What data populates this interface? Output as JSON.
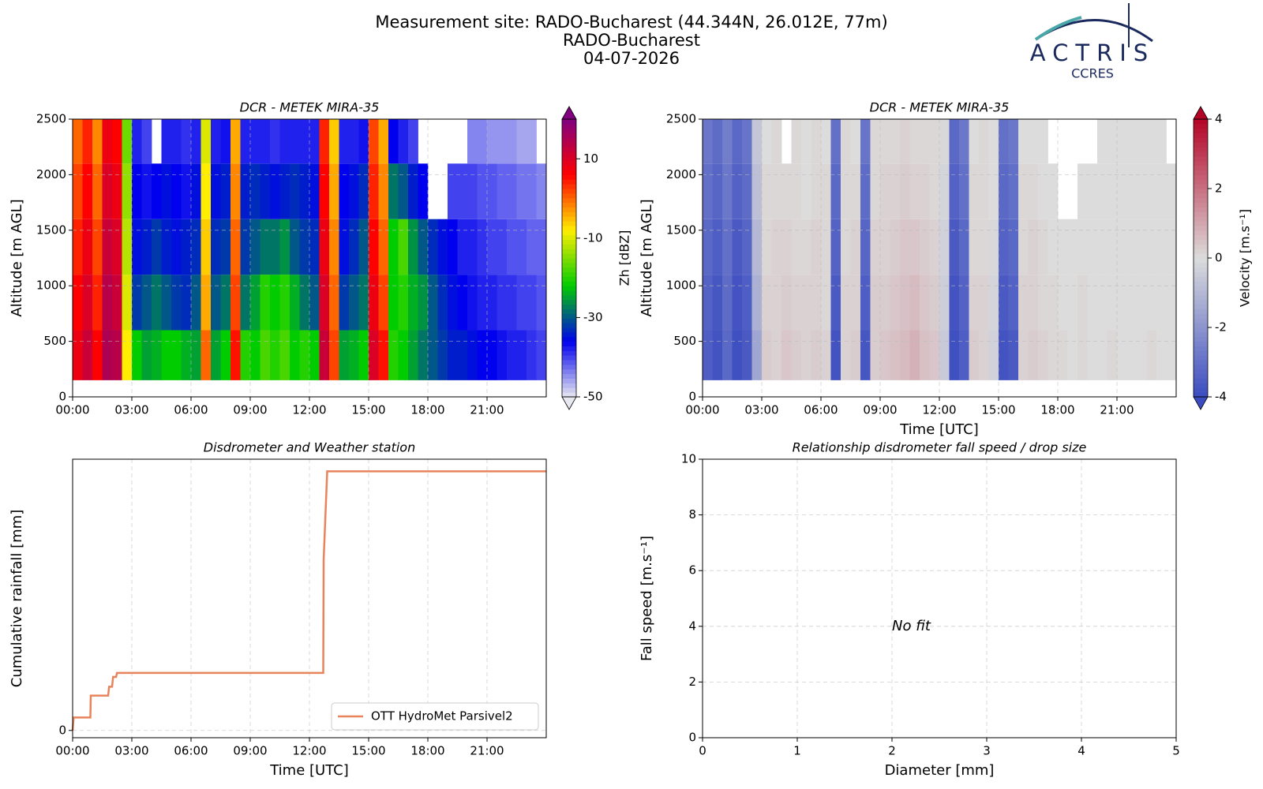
{
  "header": {
    "title": "Measurement site: RADO-Bucharest (44.344N, 26.012E, 77m)",
    "site": "RADO-Bucharest",
    "date": "04-07-2026",
    "logo": "ACTRIS",
    "logo_sub": "CCRES"
  },
  "chart_data": [
    {
      "type": "heatmap",
      "title": "DCR - METEK MIRA-35",
      "ylabel": "Altitude [m AGL]",
      "xlim": [
        0,
        24
      ],
      "ylim": [
        0,
        2500
      ],
      "yticks": [
        0,
        500,
        1000,
        1500,
        2000,
        2500
      ],
      "xticks": [
        {
          "value": 0,
          "label": "00:00"
        },
        {
          "value": 3,
          "label": "03:00"
        },
        {
          "value": 6,
          "label": "06:00"
        },
        {
          "value": 9,
          "label": "09:00"
        },
        {
          "value": 12,
          "label": "12:00"
        },
        {
          "value": 15,
          "label": "15:00"
        },
        {
          "value": 18,
          "label": "18:00"
        },
        {
          "value": 21,
          "label": "21:00"
        }
      ],
      "grid": true,
      "colorbar_label": "Zh [dBZ]",
      "clim": [
        -50,
        20
      ],
      "cticks": [
        -50,
        -30,
        -10,
        10
      ],
      "colors": [
        "#e8e8f0",
        "#0000ee",
        "#00cc00",
        "#ffee00",
        "#ff0000",
        "#800080"
      ],
      "x_edges": [
        0,
        0.5,
        1,
        1.5,
        2,
        2.5,
        3,
        3.5,
        4,
        4.5,
        5,
        5.5,
        6,
        6.5,
        7,
        7.5,
        8,
        8.5,
        9,
        9.5,
        10,
        10.5,
        11,
        11.5,
        12,
        12.5,
        13,
        13.5,
        14,
        14.5,
        15,
        15.5,
        16,
        16.5,
        17,
        17.5,
        18,
        18.5,
        19,
        19.5,
        20,
        20.5,
        21,
        21.5,
        22,
        22.5,
        23,
        23.5,
        24
      ],
      "y_edges": [
        150,
        600,
        1100,
        1600,
        2100,
        2500
      ],
      "z": [
        [
          8,
          12,
          6,
          15,
          14,
          -8,
          -22,
          -25,
          -24,
          -22,
          -22,
          -24,
          -25,
          0,
          -25,
          -22,
          5,
          -20,
          -22,
          -18,
          -20,
          -18,
          -22,
          -20,
          -22,
          12,
          2,
          -25,
          -24,
          -22,
          10,
          5,
          -20,
          -22,
          -25,
          -28,
          -30,
          -32,
          -34,
          -34,
          -35,
          -36,
          -36,
          -37,
          -38,
          -38,
          -39,
          -40
        ],
        [
          6,
          10,
          4,
          14,
          12,
          -10,
          -32,
          -30,
          -28,
          -30,
          -32,
          -33,
          -30,
          -4,
          -30,
          -28,
          2,
          -28,
          -25,
          -20,
          -22,
          -20,
          -24,
          -28,
          -30,
          10,
          0,
          -32,
          -30,
          -28,
          8,
          2,
          -22,
          -20,
          -24,
          -26,
          -30,
          -33,
          -35,
          -36,
          -37,
          -38,
          -38,
          -39,
          -39,
          -40,
          -40,
          -41
        ],
        [
          4,
          8,
          2,
          12,
          10,
          -12,
          -35,
          -34,
          -32,
          -34,
          -35,
          -34,
          -33,
          -6,
          -33,
          -32,
          0,
          -32,
          -30,
          -28,
          -28,
          -26,
          -30,
          -32,
          -33,
          8,
          -2,
          -35,
          -33,
          -30,
          6,
          0,
          -22,
          -18,
          -26,
          -30,
          -33,
          -35,
          -36,
          -38,
          -38,
          -39,
          -40,
          -40,
          -41,
          -41,
          -42,
          -42
        ],
        [
          2,
          6,
          0,
          10,
          8,
          -14,
          -36,
          -37,
          -36,
          -35,
          -36,
          -37,
          -35,
          -8,
          -35,
          -34,
          -2,
          -34,
          -33,
          -34,
          -35,
          -34,
          -33,
          -34,
          -35,
          6,
          -4,
          -36,
          -35,
          -33,
          4,
          -2,
          -28,
          -30,
          -34,
          -36,
          null,
          null,
          -40,
          -40,
          -40,
          -41,
          -41,
          -42,
          -42,
          -43,
          -43,
          -44
        ],
        [
          0,
          4,
          -2,
          8,
          6,
          -16,
          -38,
          -40,
          null,
          -38,
          -38,
          -39,
          -38,
          -10,
          -38,
          -37,
          -4,
          -38,
          -38,
          -38,
          -39,
          -38,
          -38,
          -38,
          -38,
          4,
          -6,
          -38,
          -38,
          -37,
          2,
          -4,
          -36,
          -38,
          -40,
          null,
          null,
          null,
          null,
          null,
          -44,
          -44,
          -45,
          -45,
          -45,
          -46,
          -46,
          null
        ]
      ]
    },
    {
      "type": "heatmap",
      "title": "DCR - METEK MIRA-35",
      "ylabel": "Altitude [m AGL]",
      "xlabel": "Time [UTC]",
      "xlim": [
        0,
        24
      ],
      "ylim": [
        0,
        2500
      ],
      "yticks": [
        0,
        500,
        1000,
        1500,
        2000,
        2500
      ],
      "xticks": [
        {
          "value": 0,
          "label": "00:00"
        },
        {
          "value": 3,
          "label": "03:00"
        },
        {
          "value": 6,
          "label": "06:00"
        },
        {
          "value": 9,
          "label": "09:00"
        },
        {
          "value": 12,
          "label": "12:00"
        },
        {
          "value": 15,
          "label": "15:00"
        },
        {
          "value": 18,
          "label": "18:00"
        },
        {
          "value": 21,
          "label": "21:00"
        }
      ],
      "grid": true,
      "colorbar_label": "Velocity [m.s⁻¹]",
      "clim": [
        -4,
        4
      ],
      "cticks": [
        -4,
        -2,
        0,
        2,
        4
      ],
      "colors": [
        "#3b4cc0",
        "#dcdcdc",
        "#b40426"
      ],
      "x_edges": [
        0,
        0.5,
        1,
        1.5,
        2,
        2.5,
        3,
        3.5,
        4,
        4.5,
        5,
        5.5,
        6,
        6.5,
        7,
        7.5,
        8,
        8.5,
        9,
        9.5,
        10,
        10.5,
        11,
        11.5,
        12,
        12.5,
        13,
        13.5,
        14,
        14.5,
        15,
        15.5,
        16,
        16.5,
        17,
        17.5,
        18,
        18.5,
        19,
        19.5,
        20,
        20.5,
        21,
        21.5,
        22,
        22.5,
        23,
        23.5,
        24
      ],
      "y_edges": [
        150,
        600,
        1100,
        1600,
        2100,
        2500
      ],
      "z": [
        [
          -3.5,
          -3.8,
          -3.2,
          -3.9,
          -3.6,
          -1.5,
          0.3,
          0.2,
          0.4,
          0.3,
          0.2,
          0.3,
          0.2,
          -3.8,
          0.2,
          0.3,
          -3.7,
          0.3,
          0.4,
          0.5,
          0.6,
          0.8,
          0.5,
          0.4,
          -0.5,
          -3.9,
          -3.5,
          0.3,
          0.2,
          -0.3,
          -3.8,
          -3.6,
          0.2,
          0.3,
          0.2,
          0.1,
          0.1,
          0,
          0.1,
          0,
          0,
          0.1,
          0,
          0,
          0,
          0.1,
          0,
          0
        ],
        [
          -3.4,
          -3.7,
          -3.1,
          -3.8,
          -3.5,
          -1.2,
          0.2,
          0.2,
          0.3,
          0.2,
          0.2,
          0.2,
          0.1,
          -3.6,
          0.2,
          0.2,
          -3.5,
          0.3,
          0.3,
          0.4,
          0.5,
          0.6,
          0.4,
          0.3,
          -0.4,
          -3.8,
          -3.4,
          0.2,
          0.2,
          -0.2,
          -3.6,
          -3.4,
          0.2,
          0.2,
          0.1,
          0.1,
          0,
          0,
          0.1,
          0,
          0,
          0,
          0,
          0,
          0,
          0,
          0,
          0
        ],
        [
          -3.2,
          -3.5,
          -3,
          -3.6,
          -3.3,
          -1,
          0.1,
          0.2,
          0.2,
          0.1,
          0.1,
          0.2,
          0.1,
          -3.4,
          0.1,
          0.2,
          -3.3,
          0.2,
          0.2,
          0.3,
          0.4,
          0.4,
          0.3,
          0.2,
          -0.3,
          -3.6,
          -3.2,
          0.1,
          0.1,
          -0.1,
          -3.4,
          -3.2,
          0.1,
          0.2,
          0.1,
          0,
          0,
          0,
          0,
          0,
          0,
          0,
          0,
          0,
          0,
          0,
          0,
          0
        ],
        [
          -3,
          -3.3,
          -2.8,
          -3.4,
          -3.1,
          -0.8,
          0.1,
          0.1,
          0.1,
          0.1,
          0,
          0.1,
          0.1,
          -3.2,
          0.1,
          0.1,
          -3.1,
          0.1,
          0.2,
          0.2,
          0.3,
          0.2,
          0.2,
          0.1,
          -0.2,
          -3.4,
          -3,
          0.1,
          0.1,
          0,
          -3.2,
          -3,
          0.1,
          0.1,
          0,
          0,
          null,
          null,
          0,
          0,
          0,
          0,
          0,
          0,
          0,
          0,
          0,
          0
        ],
        [
          -2.8,
          -3.1,
          -2.6,
          -3.2,
          -2.9,
          -0.6,
          0,
          0.1,
          null,
          0.1,
          0,
          0.1,
          0,
          -3,
          0.1,
          0,
          -2.9,
          0.1,
          0.1,
          0.1,
          0.2,
          0.1,
          0.1,
          0.1,
          -0.1,
          -3.2,
          -2.8,
          0,
          0.1,
          0,
          -3,
          -2.8,
          0,
          0,
          0,
          null,
          null,
          null,
          null,
          null,
          0,
          0,
          0,
          0,
          0,
          0,
          0,
          null
        ]
      ]
    },
    {
      "type": "line",
      "title": "Disdrometer and Weather station",
      "xlabel": "Time [UTC]",
      "ylabel": "Cumulative rainfall [mm]",
      "xlim": [
        0,
        24
      ],
      "ylim": [
        -0.18,
        6.7
      ],
      "yticks": [
        0
      ],
      "xticks": [
        {
          "value": 0,
          "label": "00:00"
        },
        {
          "value": 3,
          "label": "03:00"
        },
        {
          "value": 6,
          "label": "06:00"
        },
        {
          "value": 9,
          "label": "09:00"
        },
        {
          "value": 12,
          "label": "12:00"
        },
        {
          "value": 15,
          "label": "15:00"
        },
        {
          "value": 18,
          "label": "18:00"
        },
        {
          "value": 21,
          "label": "21:00"
        }
      ],
      "grid": true,
      "legend": "lower right",
      "series": [
        {
          "name": "OTT HydroMet Parsivel2",
          "color": "#e8835b",
          "x": [
            0,
            0.05,
            0.9,
            0.92,
            1.8,
            1.85,
            2.0,
            2.05,
            2.2,
            2.25,
            12.7,
            12.72,
            12.9,
            24
          ],
          "values": [
            0,
            0.32,
            0.32,
            0.86,
            0.86,
            1.08,
            1.08,
            1.32,
            1.32,
            1.42,
            1.42,
            4.2,
            6.4,
            6.4
          ]
        }
      ]
    },
    {
      "type": "scatter",
      "title": "Relationship disdrometer fall speed / drop size",
      "xlabel": "Diameter [mm]",
      "ylabel": "Fall speed [m.s⁻¹]",
      "xlim": [
        0,
        5
      ],
      "ylim": [
        0,
        10
      ],
      "xticks": [
        0,
        1,
        2,
        3,
        4,
        5
      ],
      "yticks": [
        0,
        2,
        4,
        6,
        8,
        10
      ],
      "grid": true,
      "annotation": "No fit"
    }
  ]
}
